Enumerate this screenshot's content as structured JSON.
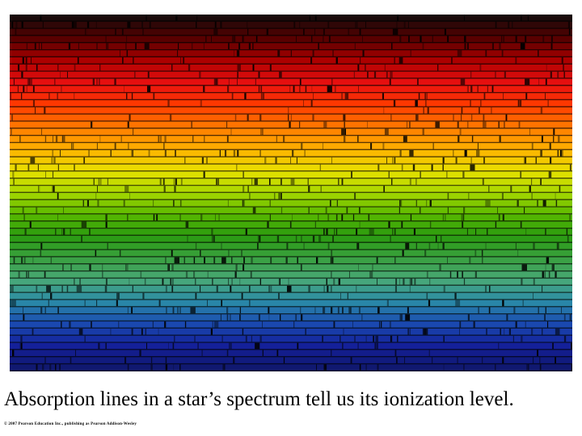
{
  "slide": {
    "caption": "Absorption lines in a star’s spectrum tell us its ionization level.",
    "copyright": "© 2007 Pearson Education Inc., publishing as Pearson Addison-Wesley"
  },
  "image": {
    "subject": "solar-spectrum",
    "band_colors": [
      "#1a0a0a",
      "#5a0000",
      "#b00000",
      "#e81010",
      "#ff3a00",
      "#ff7a00",
      "#ffb000",
      "#e8e000",
      "#a8d800",
      "#58b800",
      "#2a9a10",
      "#3aa040",
      "#48a878",
      "#2a8aa8",
      "#1a4ab0",
      "#14209a",
      "#101870"
    ]
  }
}
